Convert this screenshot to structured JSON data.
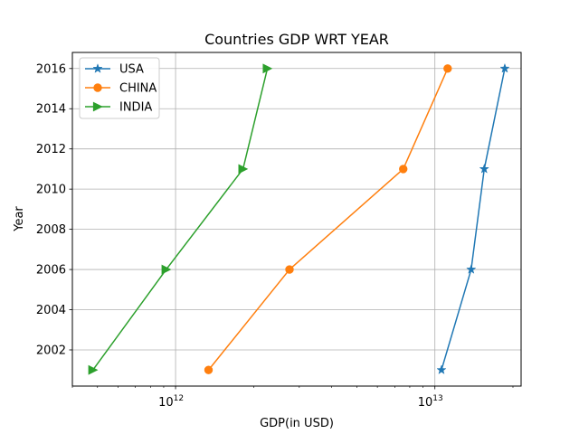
{
  "chart_data": {
    "type": "line",
    "title": "Countries GDP WRT YEAR",
    "xlabel": "GDP(in USD)",
    "ylabel": "Year",
    "xscale": "log",
    "xlim": [
      400000000000.0,
      21500000000000.0
    ],
    "ylim": [
      2000.2,
      2016.8
    ],
    "x_major_ticks": [
      {
        "value": 1000000000000.0,
        "base": "10",
        "exp": "12"
      },
      {
        "value": 10000000000000.0,
        "base": "10",
        "exp": "13"
      }
    ],
    "y_ticks": [
      2002,
      2004,
      2006,
      2008,
      2010,
      2012,
      2014,
      2016
    ],
    "y_tick_labels": [
      "2002",
      "2004",
      "2006",
      "2008",
      "2010",
      "2012",
      "2014",
      "2016"
    ],
    "grid": true,
    "legend_position": "top-left",
    "series": [
      {
        "name": "USA",
        "color": "#1f77b4",
        "marker": "star",
        "points": [
          {
            "x": 10600000000000.0,
            "y": 2001
          },
          {
            "x": 13800000000000.0,
            "y": 2006
          },
          {
            "x": 15500000000000.0,
            "y": 2011
          },
          {
            "x": 18600000000000.0,
            "y": 2016
          }
        ]
      },
      {
        "name": "CHINA",
        "color": "#ff7f0e",
        "marker": "circle",
        "points": [
          {
            "x": 1340000000000.0,
            "y": 2001
          },
          {
            "x": 2750000000000.0,
            "y": 2006
          },
          {
            "x": 7550000000000.0,
            "y": 2011
          },
          {
            "x": 11200000000000.0,
            "y": 2016
          }
        ]
      },
      {
        "name": "INDIA",
        "color": "#2ca02c",
        "marker": "triangle-right",
        "points": [
          {
            "x": 480000000000.0,
            "y": 2001
          },
          {
            "x": 920000000000.0,
            "y": 2006
          },
          {
            "x": 1820000000000.0,
            "y": 2011
          },
          {
            "x": 2260000000000.0,
            "y": 2016
          }
        ]
      }
    ]
  }
}
